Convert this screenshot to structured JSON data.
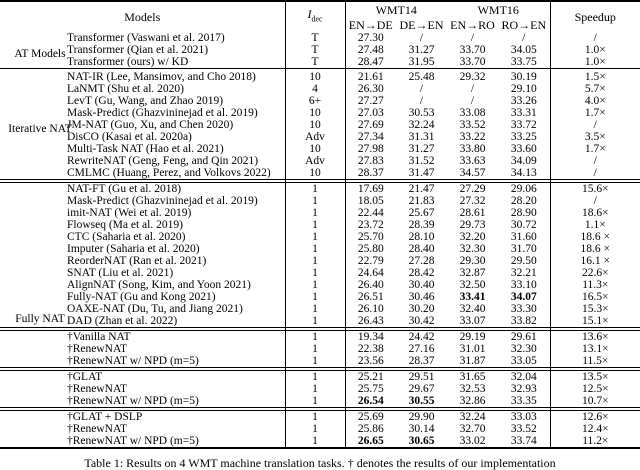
{
  "header": {
    "models": "Models",
    "idec_base": "I",
    "idec_sub": "dec",
    "wmt14": "WMT14",
    "wmt16": "WMT16",
    "directions": [
      "EN→DE",
      "DE→EN",
      "EN→RO",
      "RO→EN"
    ],
    "speedup": "Speedup"
  },
  "group_labels": [
    "AT Models",
    "Iterative NAT",
    "Fully NAT"
  ],
  "sections": [
    {
      "sep_after": "single",
      "rows": [
        {
          "name": "Transformer (Vaswani et al. 2017)",
          "idec": "T",
          "scores": [
            "27.30",
            "/",
            "/",
            "/"
          ],
          "speedup": "/"
        },
        {
          "name": "Transformer (Qian et al. 2021)",
          "idec": "T",
          "scores": [
            "27.48",
            "31.27",
            "33.70",
            "34.05"
          ],
          "speedup": "1.0×"
        },
        {
          "name": "Transformer (ours) w/ KD",
          "idec": "T",
          "scores": [
            "28.47",
            "31.95",
            "33.70",
            "33.75"
          ],
          "speedup": "1.0×"
        }
      ]
    },
    {
      "sep_after": "double",
      "rows": [
        {
          "name": "NAT-IR (Lee, Mansimov, and Cho 2018)",
          "idec": "10",
          "scores": [
            "21.61",
            "25.48",
            "29.32",
            "30.19"
          ],
          "speedup": "1.5×"
        },
        {
          "name": "LaNMT (Shu et al. 2020)",
          "idec": "4",
          "scores": [
            "26.30",
            "/",
            "/",
            "29.10"
          ],
          "speedup": "5.7×"
        },
        {
          "name": "LevT (Gu, Wang, and Zhao 2019)",
          "idec": "6+",
          "scores": [
            "27.27",
            "/",
            "/",
            "33.26"
          ],
          "speedup": "4.0×"
        },
        {
          "name": "Mask-Predict (Ghazvininejad et al. 2019)",
          "idec": "10",
          "scores": [
            "27.03",
            "30.53",
            "33.08",
            "33.31"
          ],
          "speedup": "1.7×"
        },
        {
          "name": "JM-NAT (Guo, Xu, and Chen 2020)",
          "idec": "10",
          "scores": [
            "27.69",
            "32.24",
            "33.52",
            "33.72"
          ],
          "speedup": "/"
        },
        {
          "name": "DisCO (Kasai et al. 2020a)",
          "idec": "Adv",
          "scores": [
            "27.34",
            "31.31",
            "33.22",
            "33.25"
          ],
          "speedup": "3.5×"
        },
        {
          "name": "Multi-Task NAT (Hao et al. 2021)",
          "idec": "10",
          "scores": [
            "27.98",
            "31.27",
            "33.80",
            "33.60"
          ],
          "speedup": "1.7×"
        },
        {
          "name": "RewriteNAT (Geng, Feng, and Qin 2021)",
          "idec": "Adv",
          "scores": [
            "27.83",
            "31.52",
            "33.63",
            "34.09"
          ],
          "speedup": "/"
        },
        {
          "name": "CMLMC (Huang, Perez, and Volkovs 2022)",
          "idec": "10",
          "scores": [
            "28.37",
            "31.47",
            "34.57",
            "34.13"
          ],
          "speedup": "/"
        }
      ]
    },
    {
      "sep_after": "double",
      "rows": [
        {
          "name": "NAT-FT (Gu et al. 2018)",
          "idec": "1",
          "scores": [
            "17.69",
            "21.47",
            "27.29",
            "29.06"
          ],
          "speedup": "15.6×"
        },
        {
          "name": "Mask-Predict (Ghazvininejad et al. 2019)",
          "idec": "1",
          "scores": [
            "18.05",
            "21.83",
            "27.32",
            "28.20"
          ],
          "speedup": "/"
        },
        {
          "name": "imit-NAT (Wei et al. 2019)",
          "idec": "1",
          "scores": [
            "22.44",
            "25.67",
            "28.61",
            "28.90"
          ],
          "speedup": "18.6×"
        },
        {
          "name": "Flowseq (Ma et al. 2019)",
          "idec": "1",
          "scores": [
            "23.72",
            "28.39",
            "29.73",
            "30.72"
          ],
          "speedup": "1.1×"
        },
        {
          "name": "CTC (Saharia et al. 2020)",
          "idec": "1",
          "scores": [
            "25.70",
            "28.10",
            "32.20",
            "31.60"
          ],
          "speedup": "18.6 ×"
        },
        {
          "name": "Imputer (Saharia et al. 2020)",
          "idec": "1",
          "scores": [
            "25.80",
            "28.40",
            "32.30",
            "31.70"
          ],
          "speedup": "18.6 ×"
        },
        {
          "name": "ReorderNAT (Ran et al. 2021)",
          "idec": "1",
          "scores": [
            "22.79",
            "27.28",
            "29.30",
            "29.50"
          ],
          "speedup": "16.1 ×"
        },
        {
          "name": "SNAT (Liu et al. 2021)",
          "idec": "1",
          "scores": [
            "24.64",
            "28.42",
            "32.87",
            "32.21"
          ],
          "speedup": "22.6×"
        },
        {
          "name": "AlignNAT (Song, Kim, and Yoon 2021)",
          "idec": "1",
          "scores": [
            "26.40",
            "30.40",
            "32.50",
            "33.10"
          ],
          "speedup": "11.3×"
        },
        {
          "name": "Fully-NAT (Gu and Kong 2021)",
          "idec": "1",
          "scores": [
            "26.51",
            "30.46",
            "33.41",
            "34.07"
          ],
          "bold": [
            2,
            3
          ],
          "speedup": "16.5×"
        },
        {
          "name": "OAXE-NAT (Du, Tu, and Jiang 2021)",
          "idec": "1",
          "scores": [
            "26.10",
            "30.20",
            "32.40",
            "33.30"
          ],
          "speedup": "15.3×"
        },
        {
          "name": "DAD (Zhan et al. 2022)",
          "idec": "1",
          "scores": [
            "26.43",
            "30.42",
            "33.07",
            "33.82"
          ],
          "speedup": "15.1×"
        }
      ]
    },
    {
      "sep_after": "double",
      "rows": [
        {
          "name": "†Vanilla NAT",
          "idec": "1",
          "scores": [
            "19.34",
            "24.42",
            "29.19",
            "29.61"
          ],
          "speedup": "13.6×"
        },
        {
          "name": "†RenewNAT",
          "idec": "1",
          "scores": [
            "22.38",
            "27.16",
            "31.01",
            "32.30"
          ],
          "speedup": "13.1×"
        },
        {
          "name": "†RenewNAT w/ NPD (m=5)",
          "idec": "1",
          "scores": [
            "23.56",
            "28.37",
            "31.87",
            "33.05"
          ],
          "speedup": "11.5×"
        }
      ]
    },
    {
      "sep_after": "double",
      "rows": [
        {
          "name": "†GLAT",
          "idec": "1",
          "scores": [
            "25.21",
            "29.51",
            "31.65",
            "32.04"
          ],
          "speedup": "13.5×"
        },
        {
          "name": "†RenewNAT",
          "idec": "1",
          "scores": [
            "25.75",
            "29.67",
            "32.53",
            "32.93"
          ],
          "speedup": "12.5×"
        },
        {
          "name": "†RenewNAT w/ NPD (m=5)",
          "idec": "1",
          "scores": [
            "26.54",
            "30.55",
            "32.86",
            "33.35"
          ],
          "bold": [
            0,
            1
          ],
          "speedup": "10.7×"
        }
      ]
    },
    {
      "sep_after": "none",
      "rows": [
        {
          "name": "†GLAT + DSLP",
          "idec": "1",
          "scores": [
            "25.69",
            "29.90",
            "32.24",
            "33.03"
          ],
          "speedup": "12.6×"
        },
        {
          "name": "†RenewNAT",
          "idec": "1",
          "scores": [
            "25.86",
            "30.14",
            "32.70",
            "33.52"
          ],
          "speedup": "12.4×"
        },
        {
          "name": "†RenewNAT w/ NPD (m=5)",
          "idec": "1",
          "scores": [
            "26.65",
            "30.65",
            "33.02",
            "33.74"
          ],
          "bold": [
            0,
            1
          ],
          "speedup": "11.2×"
        }
      ]
    }
  ],
  "caption": "Table 1: Results on 4 WMT machine translation tasks. † denotes the results of our implementation"
}
